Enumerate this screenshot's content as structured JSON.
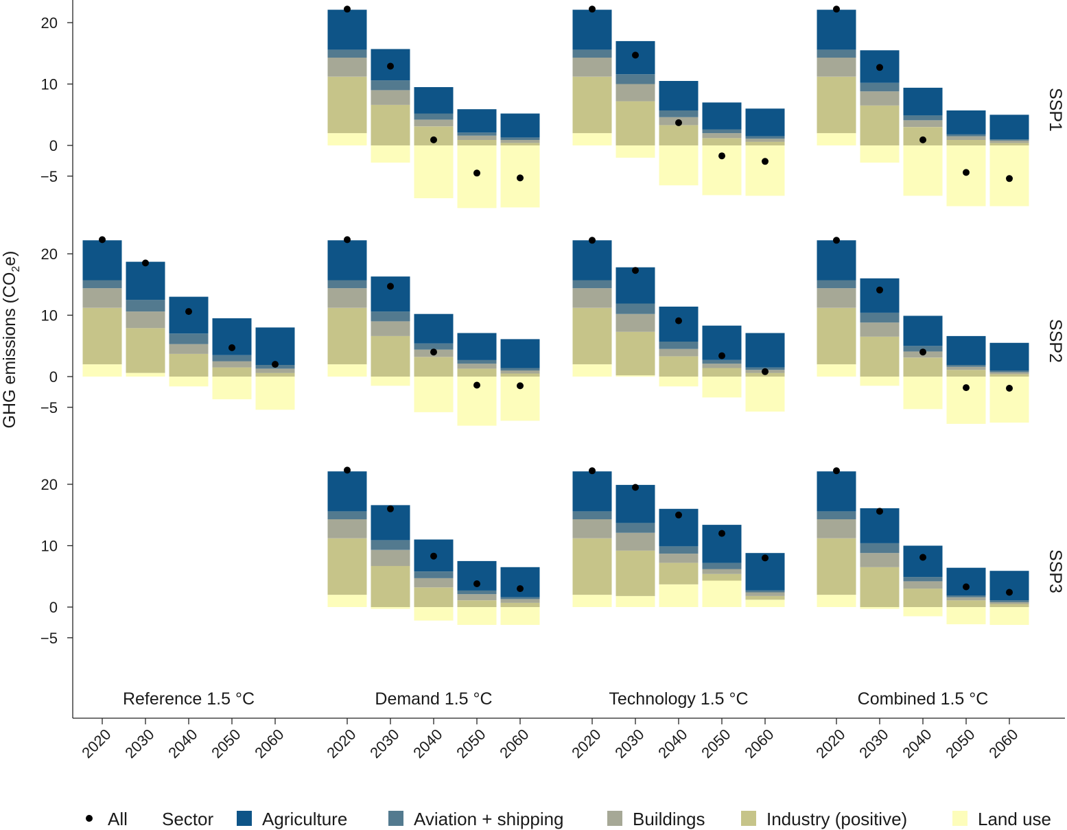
{
  "chart_data": {
    "type": "bar",
    "subtype": "stacked-bar-with-points",
    "title": "",
    "ylabel": "GHG emissions (CO2e)",
    "ylabel_parts": {
      "main": "GHG emissions (CO",
      "sub": "2",
      "end": "e)"
    },
    "xlabel": "",
    "ylim": [
      -9,
      23.5
    ],
    "yticks": [
      20,
      10,
      0,
      -5
    ],
    "ytick_labels": [
      "20",
      "10",
      "0",
      "−5"
    ],
    "years": [
      "2020",
      "2030",
      "2040",
      "2050",
      "2060"
    ],
    "scenarios": [
      "Reference 1.5 °C",
      "Demand 1.5 °C",
      "Technology 1.5 °C",
      "Combined 1.5 °C"
    ],
    "ssp_rows": [
      "SSP1",
      "SSP2",
      "SSP3"
    ],
    "sector_order": [
      "land",
      "industry",
      "buildings",
      "aviation",
      "agriculture"
    ],
    "legend": {
      "point_label": "All",
      "sector_heading": "Sector",
      "sectors": [
        {
          "key": "agriculture",
          "label": "Agriculture",
          "color": "#0e5487"
        },
        {
          "key": "aviation",
          "label": "Aviation + shipping",
          "color": "#537a8f"
        },
        {
          "key": "buildings",
          "label": "Buildings",
          "color": "#a6a896"
        },
        {
          "key": "industry",
          "label": "Industry (positive)",
          "color": "#c6c489"
        },
        {
          "key": "land",
          "label": "Land use",
          "color": "#fdfdbb"
        }
      ]
    },
    "panels": [
      {
        "ssp": "SSP1",
        "scenario": "Demand 1.5 °C",
        "series": {
          "land": [
            2.0,
            -2.8,
            -8.6,
            -10.2,
            -10.1
          ],
          "industry": [
            9.2,
            6.6,
            3.1,
            0.9,
            0.4
          ],
          "buildings": [
            3.1,
            2.4,
            1.1,
            0.7,
            0.5
          ],
          "aviation": [
            1.3,
            1.6,
            1.0,
            0.5,
            0.4
          ],
          "agriculture": [
            6.5,
            5.1,
            4.3,
            3.8,
            3.9
          ]
        },
        "all": [
          22.2,
          12.9,
          0.9,
          -4.5,
          -5.3
        ]
      },
      {
        "ssp": "SSP1",
        "scenario": "Technology 1.5 °C",
        "series": {
          "land": [
            2.0,
            -2.0,
            -6.5,
            -8.1,
            -8.2
          ],
          "industry": [
            9.2,
            7.2,
            3.3,
            1.2,
            0.6
          ],
          "buildings": [
            3.1,
            2.8,
            1.3,
            0.8,
            0.5
          ],
          "aviation": [
            1.3,
            1.6,
            1.1,
            0.6,
            0.4
          ],
          "agriculture": [
            6.5,
            5.4,
            4.8,
            4.4,
            4.5
          ]
        },
        "all": [
          22.2,
          14.7,
          3.7,
          -1.7,
          -2.6
        ]
      },
      {
        "ssp": "SSP1",
        "scenario": "Combined 1.5 °C",
        "series": {
          "land": [
            2.0,
            -2.8,
            -8.2,
            -9.9,
            -9.9
          ],
          "industry": [
            9.2,
            6.5,
            3.0,
            0.9,
            0.4
          ],
          "buildings": [
            3.1,
            2.3,
            1.1,
            0.6,
            0.4
          ],
          "aviation": [
            1.3,
            1.4,
            0.8,
            0.3,
            0.2
          ],
          "agriculture": [
            6.5,
            5.3,
            4.5,
            3.9,
            4.0
          ]
        },
        "all": [
          22.2,
          12.7,
          0.9,
          -4.4,
          -5.4
        ]
      },
      {
        "ssp": "SSP2",
        "scenario": "Reference 1.5 °C",
        "series": {
          "land": [
            2.0,
            0.6,
            -1.6,
            -3.7,
            -5.4
          ],
          "industry": [
            9.2,
            7.3,
            3.7,
            1.5,
            0.6
          ],
          "buildings": [
            3.2,
            2.7,
            1.6,
            1.0,
            0.7
          ],
          "aviation": [
            1.3,
            1.9,
            1.7,
            1.0,
            0.6
          ],
          "agriculture": [
            6.5,
            6.2,
            6.0,
            6.0,
            6.1
          ]
        },
        "all": [
          22.3,
          18.5,
          10.6,
          4.7,
          2.0
        ]
      },
      {
        "ssp": "SSP2",
        "scenario": "Demand 1.5 °C",
        "series": {
          "land": [
            2.0,
            -1.5,
            -5.8,
            -8.0,
            -7.2
          ],
          "industry": [
            9.2,
            6.6,
            3.2,
            1.3,
            0.5
          ],
          "buildings": [
            3.2,
            2.4,
            1.2,
            0.8,
            0.5
          ],
          "aviation": [
            1.3,
            1.6,
            1.0,
            0.6,
            0.4
          ],
          "agriculture": [
            6.5,
            5.7,
            4.8,
            4.4,
            4.7
          ]
        },
        "all": [
          22.3,
          14.7,
          4.0,
          -1.4,
          -1.5
        ]
      },
      {
        "ssp": "SSP2",
        "scenario": "Technology 1.5 °C",
        "series": {
          "land": [
            2.0,
            0.2,
            -1.6,
            -3.4,
            -5.7
          ],
          "industry": [
            9.2,
            7.1,
            3.3,
            1.4,
            0.6
          ],
          "buildings": [
            3.2,
            2.9,
            1.2,
            0.7,
            0.5
          ],
          "aviation": [
            1.3,
            1.7,
            1.2,
            0.6,
            0.4
          ],
          "agriculture": [
            6.5,
            5.9,
            5.7,
            5.6,
            5.6
          ]
        },
        "all": [
          22.2,
          17.3,
          9.1,
          3.4,
          0.8
        ]
      },
      {
        "ssp": "SSP2",
        "scenario": "Combined 1.5 °C",
        "series": {
          "land": [
            2.0,
            -1.5,
            -5.3,
            -7.7,
            -7.5
          ],
          "industry": [
            9.2,
            6.5,
            3.1,
            1.1,
            0.4
          ],
          "buildings": [
            3.2,
            2.3,
            1.0,
            0.5,
            0.3
          ],
          "aviation": [
            1.3,
            1.6,
            0.9,
            0.3,
            0.3
          ],
          "agriculture": [
            6.5,
            5.6,
            4.9,
            4.7,
            4.5
          ]
        },
        "all": [
          22.2,
          14.1,
          4.0,
          -1.8,
          -1.9
        ]
      },
      {
        "ssp": "SSP3",
        "scenario": "Demand 1.5 °C",
        "series": {
          "land": [
            2.0,
            -0.3,
            -2.2,
            -2.9,
            -2.9
          ],
          "industry": [
            9.2,
            6.7,
            3.2,
            1.1,
            0.7
          ],
          "buildings": [
            3.1,
            2.6,
            1.5,
            1.0,
            0.6
          ],
          "aviation": [
            1.3,
            1.6,
            1.1,
            0.6,
            0.3
          ],
          "agriculture": [
            6.5,
            5.7,
            5.2,
            4.8,
            4.9
          ]
        },
        "all": [
          22.3,
          16.0,
          8.3,
          3.8,
          3.0
        ]
      },
      {
        "ssp": "SSP3",
        "scenario": "Technology 1.5 °C",
        "series": {
          "land": [
            2.0,
            1.8,
            3.7,
            4.3,
            1.2
          ],
          "industry": [
            9.2,
            7.4,
            3.5,
            1.1,
            0.6
          ],
          "buildings": [
            3.1,
            2.9,
            1.5,
            0.8,
            0.6
          ],
          "aviation": [
            1.3,
            1.6,
            1.2,
            1.0,
            0.3
          ],
          "agriculture": [
            6.5,
            6.2,
            6.1,
            6.2,
            6.1
          ]
        },
        "all": [
          22.2,
          19.5,
          15.0,
          12.0,
          8.0
        ]
      },
      {
        "ssp": "SSP3",
        "scenario": "Combined 1.5 °C",
        "series": {
          "land": [
            2.0,
            -0.3,
            -1.5,
            -2.8,
            -2.9
          ],
          "industry": [
            9.2,
            6.5,
            3.0,
            1.1,
            0.5
          ],
          "buildings": [
            3.1,
            2.3,
            1.2,
            0.5,
            0.3
          ],
          "aviation": [
            1.3,
            1.6,
            0.7,
            0.3,
            0.3
          ],
          "agriculture": [
            6.5,
            5.7,
            5.1,
            4.5,
            4.8
          ]
        },
        "all": [
          22.2,
          15.6,
          8.1,
          3.3,
          2.4
        ]
      }
    ]
  }
}
